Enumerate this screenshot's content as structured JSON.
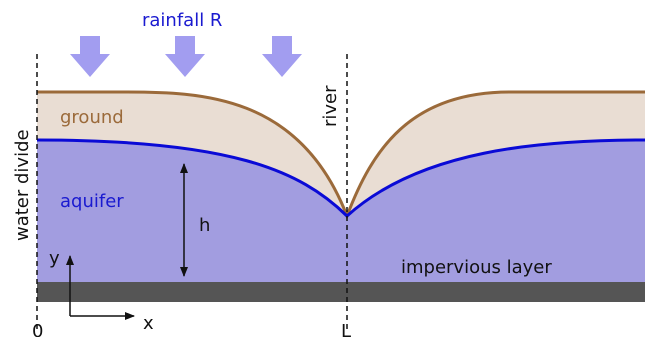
{
  "labels": {
    "rainfall": "rainfall R",
    "ground": "ground",
    "aquifer": "aquifer",
    "water_divide": "water divide",
    "river": "river",
    "h": "h",
    "impervious_layer": "impervious layer",
    "y_axis": "y",
    "x_axis": "x",
    "origin": "0",
    "river_position": "L"
  },
  "colors": {
    "ground_line": "#9b6a3a",
    "ground_fill": "#e9ddd3",
    "water_table": "#0a0ad6",
    "aquifer_fill": "#a29de0",
    "rain_arrow": "#a29df0",
    "impervious_layer": "#555555",
    "rainfall_text": "#1a1ad0",
    "ground_text": "#9b6a3a",
    "aquifer_text": "#1a1ad0",
    "plain_text": "#111111"
  },
  "icons": {
    "rain_arrows": "down-arrow-icon",
    "h_marker": "double-headed-arrow-icon"
  }
}
